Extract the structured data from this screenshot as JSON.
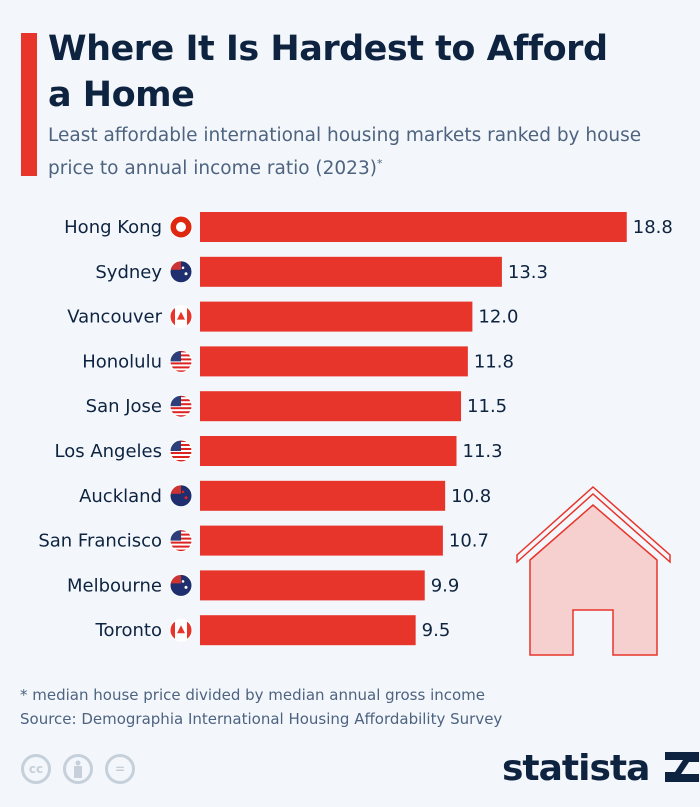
{
  "header": {
    "title": "Where It Is Hardest to Afford a Home",
    "subtitle": "Least affordable international housing markets ranked by house price to annual income ratio (2023)",
    "subtitle_mark": "*"
  },
  "chart_data": {
    "type": "bar",
    "orientation": "horizontal",
    "categories": [
      "Hong Kong",
      "Sydney",
      "Vancouver",
      "Honolulu",
      "San Jose",
      "Los Angeles",
      "Auckland",
      "San Francisco",
      "Melbourne",
      "Toronto"
    ],
    "flags": [
      "hong-kong",
      "australia",
      "canada",
      "usa",
      "usa",
      "usa",
      "new-zealand",
      "usa",
      "australia",
      "canada"
    ],
    "values": [
      18.8,
      13.3,
      12.0,
      11.8,
      11.5,
      11.3,
      10.8,
      10.7,
      9.9,
      9.5
    ],
    "labels": [
      "18.8",
      "13.3",
      "12.0",
      "11.8",
      "11.5",
      "11.3",
      "10.8",
      "10.7",
      "9.9",
      "9.5"
    ],
    "bar_color": "#e8352b",
    "grid": false
  },
  "footer": {
    "note": "* median house price divided by median annual gross income",
    "source": "Source: Demographia International Housing Affordability Survey",
    "license_icons": [
      "cc-icon",
      "by-icon",
      "nd-icon"
    ],
    "cc": "cc",
    "nd": "=",
    "brand": "statista"
  }
}
